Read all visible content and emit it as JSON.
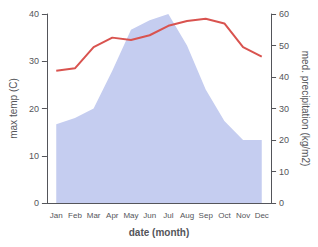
{
  "chart_data": {
    "type": "line",
    "categories": [
      "Jan",
      "Feb",
      "Mar",
      "Apr",
      "May",
      "Jun",
      "Jul",
      "Aug",
      "Sep",
      "Oct",
      "Nov",
      "Dec"
    ],
    "series": [
      {
        "type": "area",
        "axis": "y2",
        "color": "#c5cdf0",
        "values": [
          25,
          27,
          30,
          42,
          55,
          58,
          60,
          50,
          36,
          26,
          20,
          20
        ]
      },
      {
        "type": "line",
        "color": "#d9534f",
        "values": [
          28,
          28.5,
          33,
          35,
          34.5,
          35.5,
          37.5,
          38.5,
          39,
          38,
          33,
          31
        ]
      }
    ],
    "xlabel": "date (month)",
    "ylabel": "max temp (C)",
    "y2label": "med. precipitation (kg/m2)",
    "ylim": [
      0,
      40
    ],
    "yticks": [
      0,
      10,
      20,
      30,
      40
    ],
    "y2lim": [
      0,
      60
    ],
    "y2ticks": [
      0,
      10,
      20,
      30,
      40,
      50,
      60
    ],
    "grid": false
  }
}
